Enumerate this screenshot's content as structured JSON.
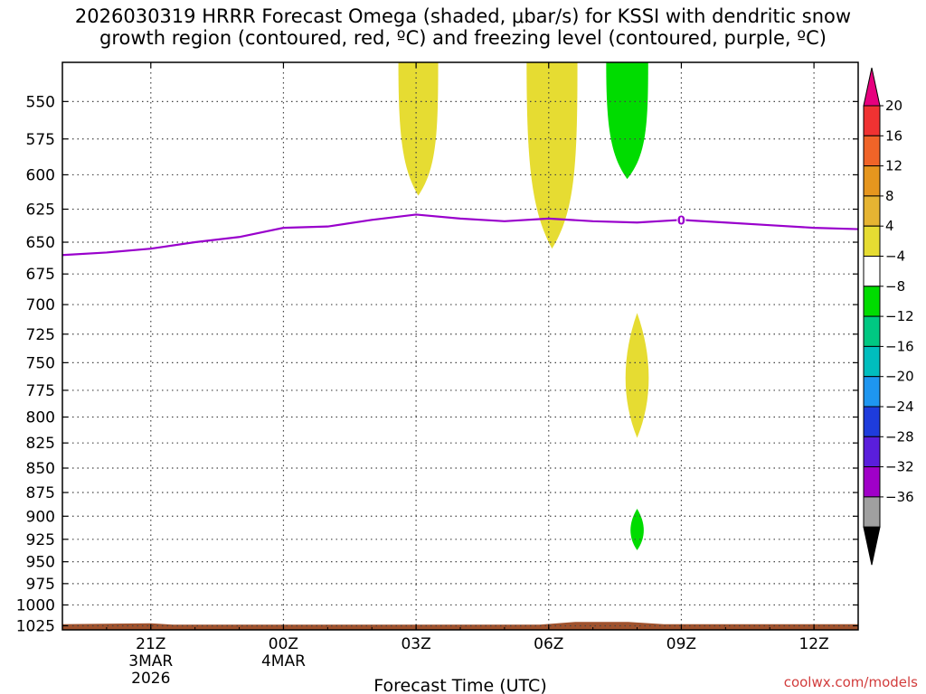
{
  "title": {
    "line1": "2026030319 HRRR Forecast Omega (shaded, μbar/s) for KSSI with dendritic snow",
    "line2": "growth region (contoured, red, ºC) and freezing level (contoured, purple, ºC)"
  },
  "credit": "coolwx.com/models",
  "chart_data": {
    "type": "time-height cross-section",
    "xlabel": "Forecast Time (UTC)",
    "x_range_hours": [
      -2,
      16
    ],
    "x_ticks": [
      {
        "h": 0,
        "label": "21Z",
        "sub": [
          "3MAR",
          "2026"
        ]
      },
      {
        "h": 3,
        "label": "00Z",
        "sub": [
          "4MAR"
        ]
      },
      {
        "h": 6,
        "label": "03Z",
        "sub": []
      },
      {
        "h": 9,
        "label": "06Z",
        "sub": []
      },
      {
        "h": 12,
        "label": "09Z",
        "sub": []
      },
      {
        "h": 15,
        "label": "12Z",
        "sub": []
      }
    ],
    "y_axis": "pressure (hPa), log scale, inverted",
    "y_range": [
      525,
      1030
    ],
    "y_ticks": [
      550,
      575,
      600,
      625,
      650,
      675,
      700,
      725,
      750,
      775,
      800,
      825,
      850,
      875,
      900,
      925,
      950,
      975,
      1000,
      1025
    ],
    "grid": "dotted",
    "freezing_level": {
      "label": "0",
      "label_at_h": 12,
      "color": "#9900cc",
      "points": [
        [
          -2,
          660
        ],
        [
          -1,
          658
        ],
        [
          0,
          655
        ],
        [
          1,
          650
        ],
        [
          2,
          646
        ],
        [
          3,
          639
        ],
        [
          4,
          638
        ],
        [
          5,
          633
        ],
        [
          6,
          629
        ],
        [
          7,
          632
        ],
        [
          8,
          634
        ],
        [
          9,
          632
        ],
        [
          10,
          634
        ],
        [
          11,
          635
        ],
        [
          12,
          633
        ],
        [
          13,
          635
        ],
        [
          14,
          637
        ],
        [
          15,
          639
        ],
        [
          16,
          640
        ]
      ]
    },
    "omega_regions": [
      {
        "bin": "4 to 8",
        "color": "#e6dc32",
        "h_left": 5.6,
        "h_right": 6.5,
        "p_top": 525,
        "p_bottom": 615
      },
      {
        "bin": "4 to 8",
        "color": "#e6dc32",
        "h_left": 8.5,
        "h_right": 9.65,
        "p_top": 525,
        "p_bottom": 655
      },
      {
        "bin": "-8 to -4",
        "color": "#00dc00",
        "h_left": 10.3,
        "h_right": 11.25,
        "p_top": 525,
        "p_bottom": 603
      },
      {
        "bin": "4 to 8",
        "color": "#e6dc32",
        "h_left": 10.65,
        "h_right": 11.35,
        "p_top": 707,
        "p_bottom": 820
      },
      {
        "bin": "-8 to -4",
        "color": "#00dc00",
        "h_left": 10.8,
        "h_right": 11.2,
        "p_top": 892,
        "p_bottom": 937
      }
    ],
    "terrain": {
      "color": "#a0522d",
      "p_top": 1022,
      "p_bottom": 1030
    },
    "colorbar": {
      "labels": [
        "20",
        "16",
        "12",
        "8",
        "4",
        "-4",
        "-8",
        "-12",
        "-16",
        "-20",
        "-24",
        "-28",
        "-32",
        "-36"
      ],
      "top_arrow": "#e6007e",
      "bottom_arrow": "#000000",
      "colors": [
        "#f03232",
        "#f06428",
        "#e6961e",
        "#e6b432",
        "#e6dc32",
        "#ffffff",
        "#00dc00",
        "#00c882",
        "#00bebe",
        "#1e96f0",
        "#1e3cdc",
        "#5a1edc",
        "#a000c8",
        "#a0a0a0"
      ]
    }
  }
}
